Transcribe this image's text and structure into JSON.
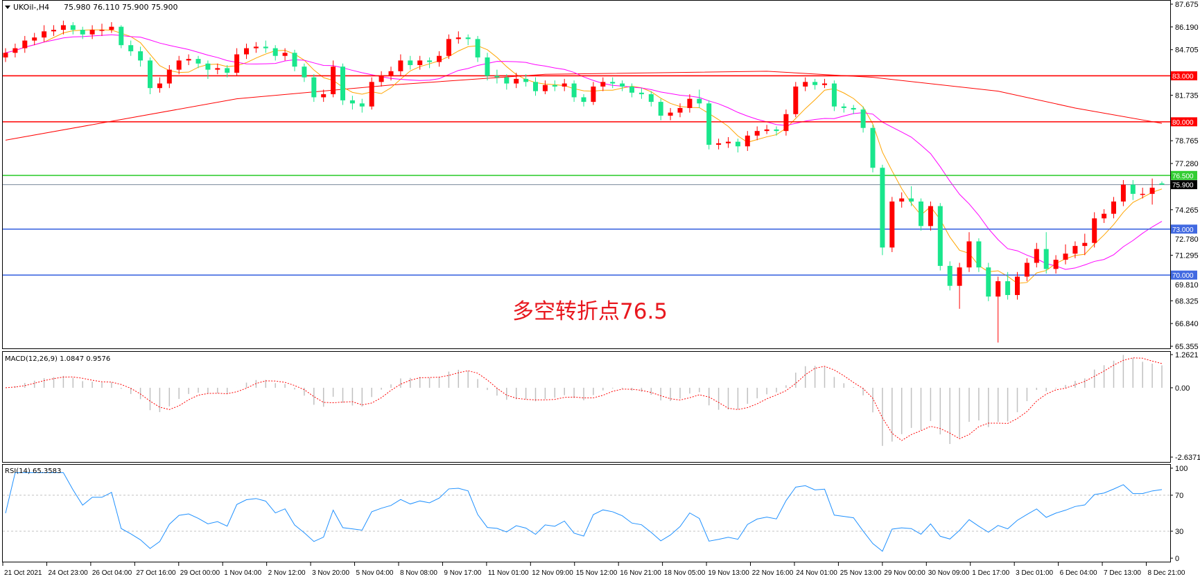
{
  "header": {
    "symbol": "UKOil-,H4",
    "ohlc": "75.980 76.110 75.900 75.900"
  },
  "annotation": "多空转折点76.5",
  "macd_label": "MACD(12,26,9) 1.0847 0.9576",
  "rsi_label": "RSI(14) 65.3583",
  "colors": {
    "bull": "#ff0000",
    "bear": "#19e68c",
    "ma_fast": "#ffa500",
    "ma_mid": "#ff00ff",
    "ma_slow": "#ff0000",
    "macd_hist": "#c0c0c0",
    "macd_signal": "#ff0000",
    "rsi": "#1e90ff"
  },
  "chart_data": [
    {
      "type": "candlestick",
      "title": "UKOil-,H4",
      "ylim": [
        65.355,
        87.675
      ],
      "y_ticks": [
        "87.675",
        "86.190",
        "84.705",
        "81.735",
        "78.765",
        "77.280",
        "74.265",
        "72.780",
        "71.295",
        "69.810",
        "68.325",
        "66.840",
        "65.355"
      ],
      "x_ticks": [
        "21 Oct 2021",
        "24 Oct 23:00",
        "26 Oct 04:00",
        "27 Oct 16:00",
        "29 Oct 00:00",
        "1 Nov 04:00",
        "2 Nov 12:00",
        "3 Nov 20:00",
        "5 Nov 04:00",
        "8 Nov 08:00",
        "9 Nov 17:00",
        "11 Nov 01:00",
        "12 Nov 09:00",
        "15 Nov 12:00",
        "16 Nov 21:00",
        "18 Nov 05:00",
        "19 Nov 13:00",
        "22 Nov 16:00",
        "24 Nov 01:00",
        "25 Nov 13:00",
        "29 Nov 00:00",
        "30 Nov 09:00",
        "1 Dec 17:00",
        "3 Dec 01:00",
        "6 Dec 04:00",
        "7 Dec 13:00",
        "8 Dec 21:00"
      ],
      "levels": [
        {
          "value": 83.0,
          "label": "83.000",
          "color": "#ff0000"
        },
        {
          "value": 80.0,
          "label": "80.000",
          "color": "#ff0000"
        },
        {
          "value": 76.5,
          "label": "76.500",
          "color": "#32cd32"
        },
        {
          "value": 75.9,
          "label": "75.900",
          "color": "#778899",
          "label_bg": "#000000"
        },
        {
          "value": 73.0,
          "label": "73.000",
          "color": "#4169e1"
        },
        {
          "value": 70.0,
          "label": "70.000",
          "color": "#4169e1"
        }
      ],
      "slow_ma": [
        [
          0,
          78.8
        ],
        [
          24,
          81.5
        ],
        [
          40,
          82.4
        ],
        [
          56,
          83.1
        ],
        [
          79,
          83.3
        ],
        [
          90,
          82.9
        ],
        [
          103,
          82.0
        ],
        [
          111,
          80.9
        ],
        [
          120,
          79.9
        ]
      ],
      "candles": [
        [
          84.2,
          84.8,
          83.9,
          84.5
        ],
        [
          84.5,
          85.1,
          84.2,
          84.8
        ],
        [
          84.8,
          85.6,
          84.5,
          85.3
        ],
        [
          85.3,
          85.8,
          85.0,
          85.5
        ],
        [
          85.5,
          86.3,
          85.2,
          85.9
        ],
        [
          85.9,
          86.3,
          85.6,
          86.0
        ],
        [
          86.0,
          86.6,
          85.7,
          86.3
        ],
        [
          86.3,
          86.5,
          85.7,
          86.0
        ],
        [
          86.0,
          86.2,
          85.4,
          85.7
        ],
        [
          85.7,
          86.3,
          85.4,
          86.0
        ],
        [
          86.0,
          86.4,
          85.6,
          86.0
        ],
        [
          86.0,
          86.5,
          85.8,
          86.2
        ],
        [
          86.2,
          86.3,
          84.8,
          85.0
        ],
        [
          85.0,
          85.3,
          84.3,
          84.6
        ],
        [
          84.6,
          84.9,
          83.6,
          84.0
        ],
        [
          84.0,
          84.2,
          81.8,
          82.2
        ],
        [
          82.2,
          82.9,
          81.9,
          82.5
        ],
        [
          82.5,
          83.7,
          82.2,
          83.4
        ],
        [
          83.4,
          84.3,
          83.1,
          84.0
        ],
        [
          84.0,
          84.4,
          83.7,
          84.1
        ],
        [
          84.1,
          84.3,
          83.5,
          83.8
        ],
        [
          83.8,
          84.0,
          82.8,
          83.4
        ],
        [
          83.4,
          83.8,
          83.1,
          83.5
        ],
        [
          83.5,
          83.7,
          82.9,
          83.2
        ],
        [
          83.2,
          84.8,
          83.0,
          84.4
        ],
        [
          84.4,
          85.1,
          84.1,
          84.8
        ],
        [
          84.8,
          85.2,
          84.5,
          84.9
        ],
        [
          84.9,
          85.3,
          84.5,
          84.8
        ],
        [
          84.8,
          85.0,
          84.0,
          84.3
        ],
        [
          84.3,
          84.8,
          84.0,
          84.5
        ],
        [
          84.5,
          84.7,
          83.3,
          83.6
        ],
        [
          83.6,
          83.8,
          82.6,
          82.9
        ],
        [
          82.9,
          83.1,
          81.3,
          81.6
        ],
        [
          81.6,
          82.1,
          81.3,
          81.8
        ],
        [
          81.8,
          84.0,
          81.6,
          83.6
        ],
        [
          83.6,
          83.8,
          81.1,
          81.4
        ],
        [
          81.4,
          81.7,
          80.8,
          81.2
        ],
        [
          81.2,
          81.5,
          80.6,
          81.0
        ],
        [
          81.0,
          82.9,
          80.8,
          82.6
        ],
        [
          82.6,
          83.3,
          82.3,
          83.0
        ],
        [
          83.0,
          83.6,
          82.7,
          83.3
        ],
        [
          83.3,
          84.4,
          83.0,
          84.0
        ],
        [
          84.0,
          84.3,
          83.4,
          83.7
        ],
        [
          83.7,
          84.3,
          83.4,
          84.0
        ],
        [
          84.0,
          84.2,
          83.5,
          83.9
        ],
        [
          83.9,
          84.6,
          83.6,
          84.3
        ],
        [
          84.3,
          85.7,
          84.1,
          85.4
        ],
        [
          85.4,
          85.9,
          85.1,
          85.5
        ],
        [
          85.5,
          85.7,
          85.0,
          85.4
        ],
        [
          85.4,
          85.6,
          83.9,
          84.2
        ],
        [
          84.2,
          84.5,
          82.7,
          83.0
        ],
        [
          83.0,
          83.4,
          82.5,
          82.9
        ],
        [
          82.9,
          83.1,
          82.1,
          82.5
        ],
        [
          82.5,
          83.2,
          82.2,
          82.8
        ],
        [
          82.8,
          83.1,
          82.3,
          82.6
        ],
        [
          82.6,
          82.9,
          81.7,
          82.0
        ],
        [
          82.0,
          82.7,
          81.8,
          82.4
        ],
        [
          82.4,
          82.7,
          82.0,
          82.3
        ],
        [
          82.3,
          82.8,
          82.0,
          82.5
        ],
        [
          82.5,
          82.7,
          81.3,
          81.6
        ],
        [
          81.6,
          81.8,
          81.0,
          81.3
        ],
        [
          81.3,
          82.6,
          81.1,
          82.3
        ],
        [
          82.3,
          82.9,
          82.0,
          82.6
        ],
        [
          82.6,
          82.9,
          82.2,
          82.5
        ],
        [
          82.5,
          82.7,
          82.0,
          82.3
        ],
        [
          82.3,
          82.5,
          81.6,
          81.9
        ],
        [
          81.9,
          82.2,
          81.5,
          81.8
        ],
        [
          81.8,
          82.0,
          81.0,
          81.3
        ],
        [
          81.3,
          81.5,
          80.1,
          80.4
        ],
        [
          80.4,
          80.9,
          80.1,
          80.6
        ],
        [
          80.6,
          81.2,
          80.3,
          80.9
        ],
        [
          80.9,
          81.8,
          80.6,
          81.5
        ],
        [
          81.5,
          82.1,
          80.9,
          81.2
        ],
        [
          81.2,
          81.4,
          78.2,
          78.5
        ],
        [
          78.5,
          78.9,
          78.2,
          78.6
        ],
        [
          78.6,
          79.0,
          78.3,
          78.7
        ],
        [
          78.7,
          78.9,
          78.0,
          78.4
        ],
        [
          78.4,
          79.4,
          78.1,
          79.1
        ],
        [
          79.1,
          79.7,
          78.8,
          79.4
        ],
        [
          79.4,
          79.8,
          79.2,
          79.5
        ],
        [
          79.5,
          79.7,
          79.1,
          79.4
        ],
        [
          79.4,
          80.8,
          79.1,
          80.5
        ],
        [
          80.5,
          82.6,
          80.3,
          82.3
        ],
        [
          82.3,
          82.9,
          82.0,
          82.6
        ],
        [
          82.6,
          82.8,
          82.1,
          82.4
        ],
        [
          82.4,
          82.8,
          82.2,
          82.5
        ],
        [
          82.5,
          82.7,
          80.7,
          81.0
        ],
        [
          81.0,
          81.2,
          80.6,
          80.9
        ],
        [
          80.9,
          81.1,
          80.5,
          80.8
        ],
        [
          80.8,
          81.0,
          79.3,
          79.6
        ],
        [
          79.6,
          79.8,
          76.7,
          77.0
        ],
        [
          77.0,
          77.2,
          71.3,
          71.8
        ],
        [
          71.8,
          75.1,
          71.5,
          74.8
        ],
        [
          74.8,
          75.4,
          74.4,
          75.0
        ],
        [
          75.0,
          75.8,
          74.5,
          74.8
        ],
        [
          74.8,
          75.0,
          72.9,
          73.2
        ],
        [
          73.2,
          74.8,
          72.9,
          74.5
        ],
        [
          74.5,
          74.7,
          70.3,
          70.6
        ],
        [
          70.6,
          70.9,
          69.0,
          69.3
        ],
        [
          69.3,
          70.8,
          67.8,
          70.5
        ],
        [
          70.5,
          72.8,
          70.2,
          72.2
        ],
        [
          72.2,
          72.4,
          70.2,
          70.5
        ],
        [
          70.5,
          70.8,
          68.3,
          68.6
        ],
        [
          68.6,
          69.9,
          65.6,
          69.6
        ],
        [
          69.6,
          70.2,
          68.4,
          68.7
        ],
        [
          68.7,
          70.2,
          68.4,
          69.9
        ],
        [
          69.9,
          71.1,
          69.6,
          70.8
        ],
        [
          70.8,
          72.1,
          70.5,
          71.7
        ],
        [
          71.7,
          72.8,
          70.1,
          70.4
        ],
        [
          70.4,
          71.3,
          70.1,
          71.0
        ],
        [
          71.0,
          72.0,
          70.7,
          71.4
        ],
        [
          71.4,
          72.2,
          71.1,
          71.9
        ],
        [
          71.9,
          72.7,
          71.3,
          72.1
        ],
        [
          72.1,
          74.1,
          71.8,
          73.7
        ],
        [
          73.7,
          74.3,
          73.4,
          74.0
        ],
        [
          74.0,
          75.1,
          73.7,
          74.8
        ],
        [
          74.8,
          76.2,
          74.5,
          75.9
        ],
        [
          75.9,
          76.2,
          74.9,
          75.3
        ],
        [
          75.3,
          75.7,
          75.0,
          75.3
        ],
        [
          75.3,
          76.3,
          74.6,
          75.7
        ],
        [
          75.98,
          76.11,
          75.9,
          75.9
        ]
      ]
    },
    {
      "type": "bar",
      "title": "MACD(12,26,9)",
      "ylim": [
        -2.6371,
        1.2621
      ],
      "y_ticks": [
        "1.2621",
        "0.00",
        "-2.6371"
      ],
      "last": {
        "macd": 1.0847,
        "signal": 0.9576
      }
    },
    {
      "type": "line",
      "title": "RSI(14)",
      "ylim": [
        0,
        100
      ],
      "y_ticks": [
        "100",
        "70",
        "30",
        "0"
      ],
      "levels": [
        70,
        30
      ],
      "last": 65.3583
    }
  ]
}
